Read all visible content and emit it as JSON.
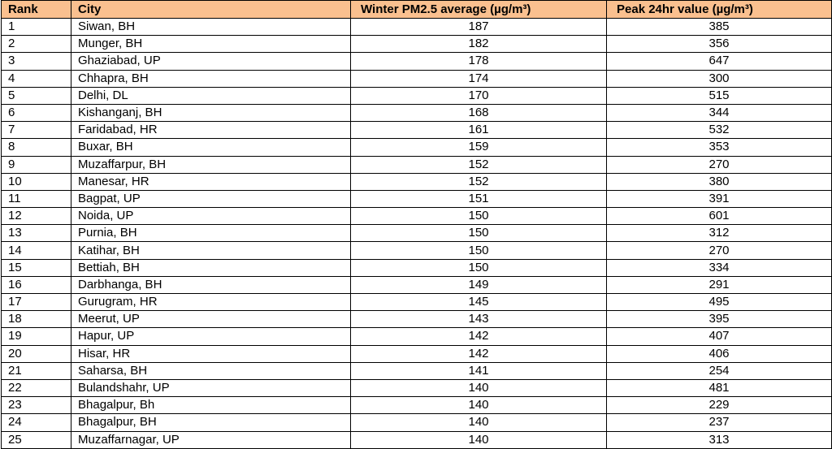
{
  "table": {
    "header": [
      "Rank",
      "City",
      "Winter PM2.5 average (µg/m³)",
      "Peak 24hr value (µg/m³)"
    ],
    "rows": [
      [
        1,
        "Siwan, BH",
        187,
        385
      ],
      [
        2,
        "Munger, BH",
        182,
        356
      ],
      [
        3,
        "Ghaziabad, UP",
        178,
        647
      ],
      [
        4,
        "Chhapra, BH",
        174,
        300
      ],
      [
        5,
        "Delhi, DL",
        170,
        515
      ],
      [
        6,
        "Kishanganj, BH",
        168,
        344
      ],
      [
        7,
        "Faridabad, HR",
        161,
        532
      ],
      [
        8,
        "Buxar, BH",
        159,
        353
      ],
      [
        9,
        "Muzaffarpur, BH",
        152,
        270
      ],
      [
        10,
        "Manesar, HR",
        152,
        380
      ],
      [
        11,
        "Bagpat, UP",
        151,
        391
      ],
      [
        12,
        "Noida, UP",
        150,
        601
      ],
      [
        13,
        "Purnia, BH",
        150,
        312
      ],
      [
        14,
        "Katihar, BH",
        150,
        270
      ],
      [
        15,
        "Bettiah, BH",
        150,
        334
      ],
      [
        16,
        "Darbhanga, BH",
        149,
        291
      ],
      [
        17,
        "Gurugram, HR",
        145,
        495
      ],
      [
        18,
        "Meerut, UP",
        143,
        395
      ],
      [
        19,
        "Hapur, UP",
        142,
        407
      ],
      [
        20,
        "Hisar, HR",
        142,
        406
      ],
      [
        21,
        "Saharsa, BH",
        141,
        254
      ],
      [
        22,
        "Bulandshahr, UP",
        140,
        481
      ],
      [
        23,
        "Bhagalpur, Bh",
        140,
        229
      ],
      [
        24,
        "Bhagalpur, BH",
        140,
        237
      ],
      [
        25,
        "Muzaffarnagar, UP",
        140,
        313
      ]
    ]
  }
}
